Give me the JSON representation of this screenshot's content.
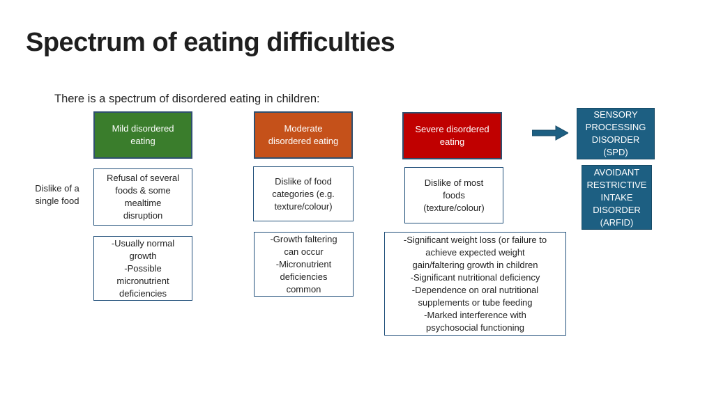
{
  "title": "Spectrum of eating difficulties",
  "intro": "There is a spectrum of disordered eating in children:",
  "headers": {
    "mild": "Mild disordered\neating",
    "moderate": "Moderate\ndisordered eating",
    "severe": "Severe disordered\neating"
  },
  "single_food": "Dislike of a\nsingle food",
  "dislikes": {
    "mild": "Refusal of several\nfoods & some\nmealtime\ndisruption",
    "moderate": "Dislike of food\ncategories (e.g.\ntexture/colour)",
    "severe": "Dislike of most\nfoods\n(texture/colour)"
  },
  "outcomes": {
    "mild": "-Usually normal\ngrowth\n-Possible\nmicronutrient\ndeficiencies",
    "moderate": "-Growth faltering\ncan occur\n-Micronutrient\ndeficiencies\ncommon",
    "severe": "-Significant weight loss (or failure to\nachieve expected weight\ngain/faltering growth in children\n-Significant nutritional deficiency\n-Dependence on oral nutritional\nsupplements or tube feeding\n-Marked interference with\npsychosocial functioning"
  },
  "disorders": {
    "spd": "SENSORY\nPROCESSING\nDISORDER\n(SPD)",
    "arfid": "AVOIDANT\nRESTRICTIVE\nINTAKE\nDISORDER\n(ARFID)"
  },
  "colors": {
    "mild": "#3a7d2c",
    "moderate": "#c5511a",
    "severe": "#c00000",
    "disorder": "#1d5f82",
    "arrow": "#1d5f82"
  }
}
